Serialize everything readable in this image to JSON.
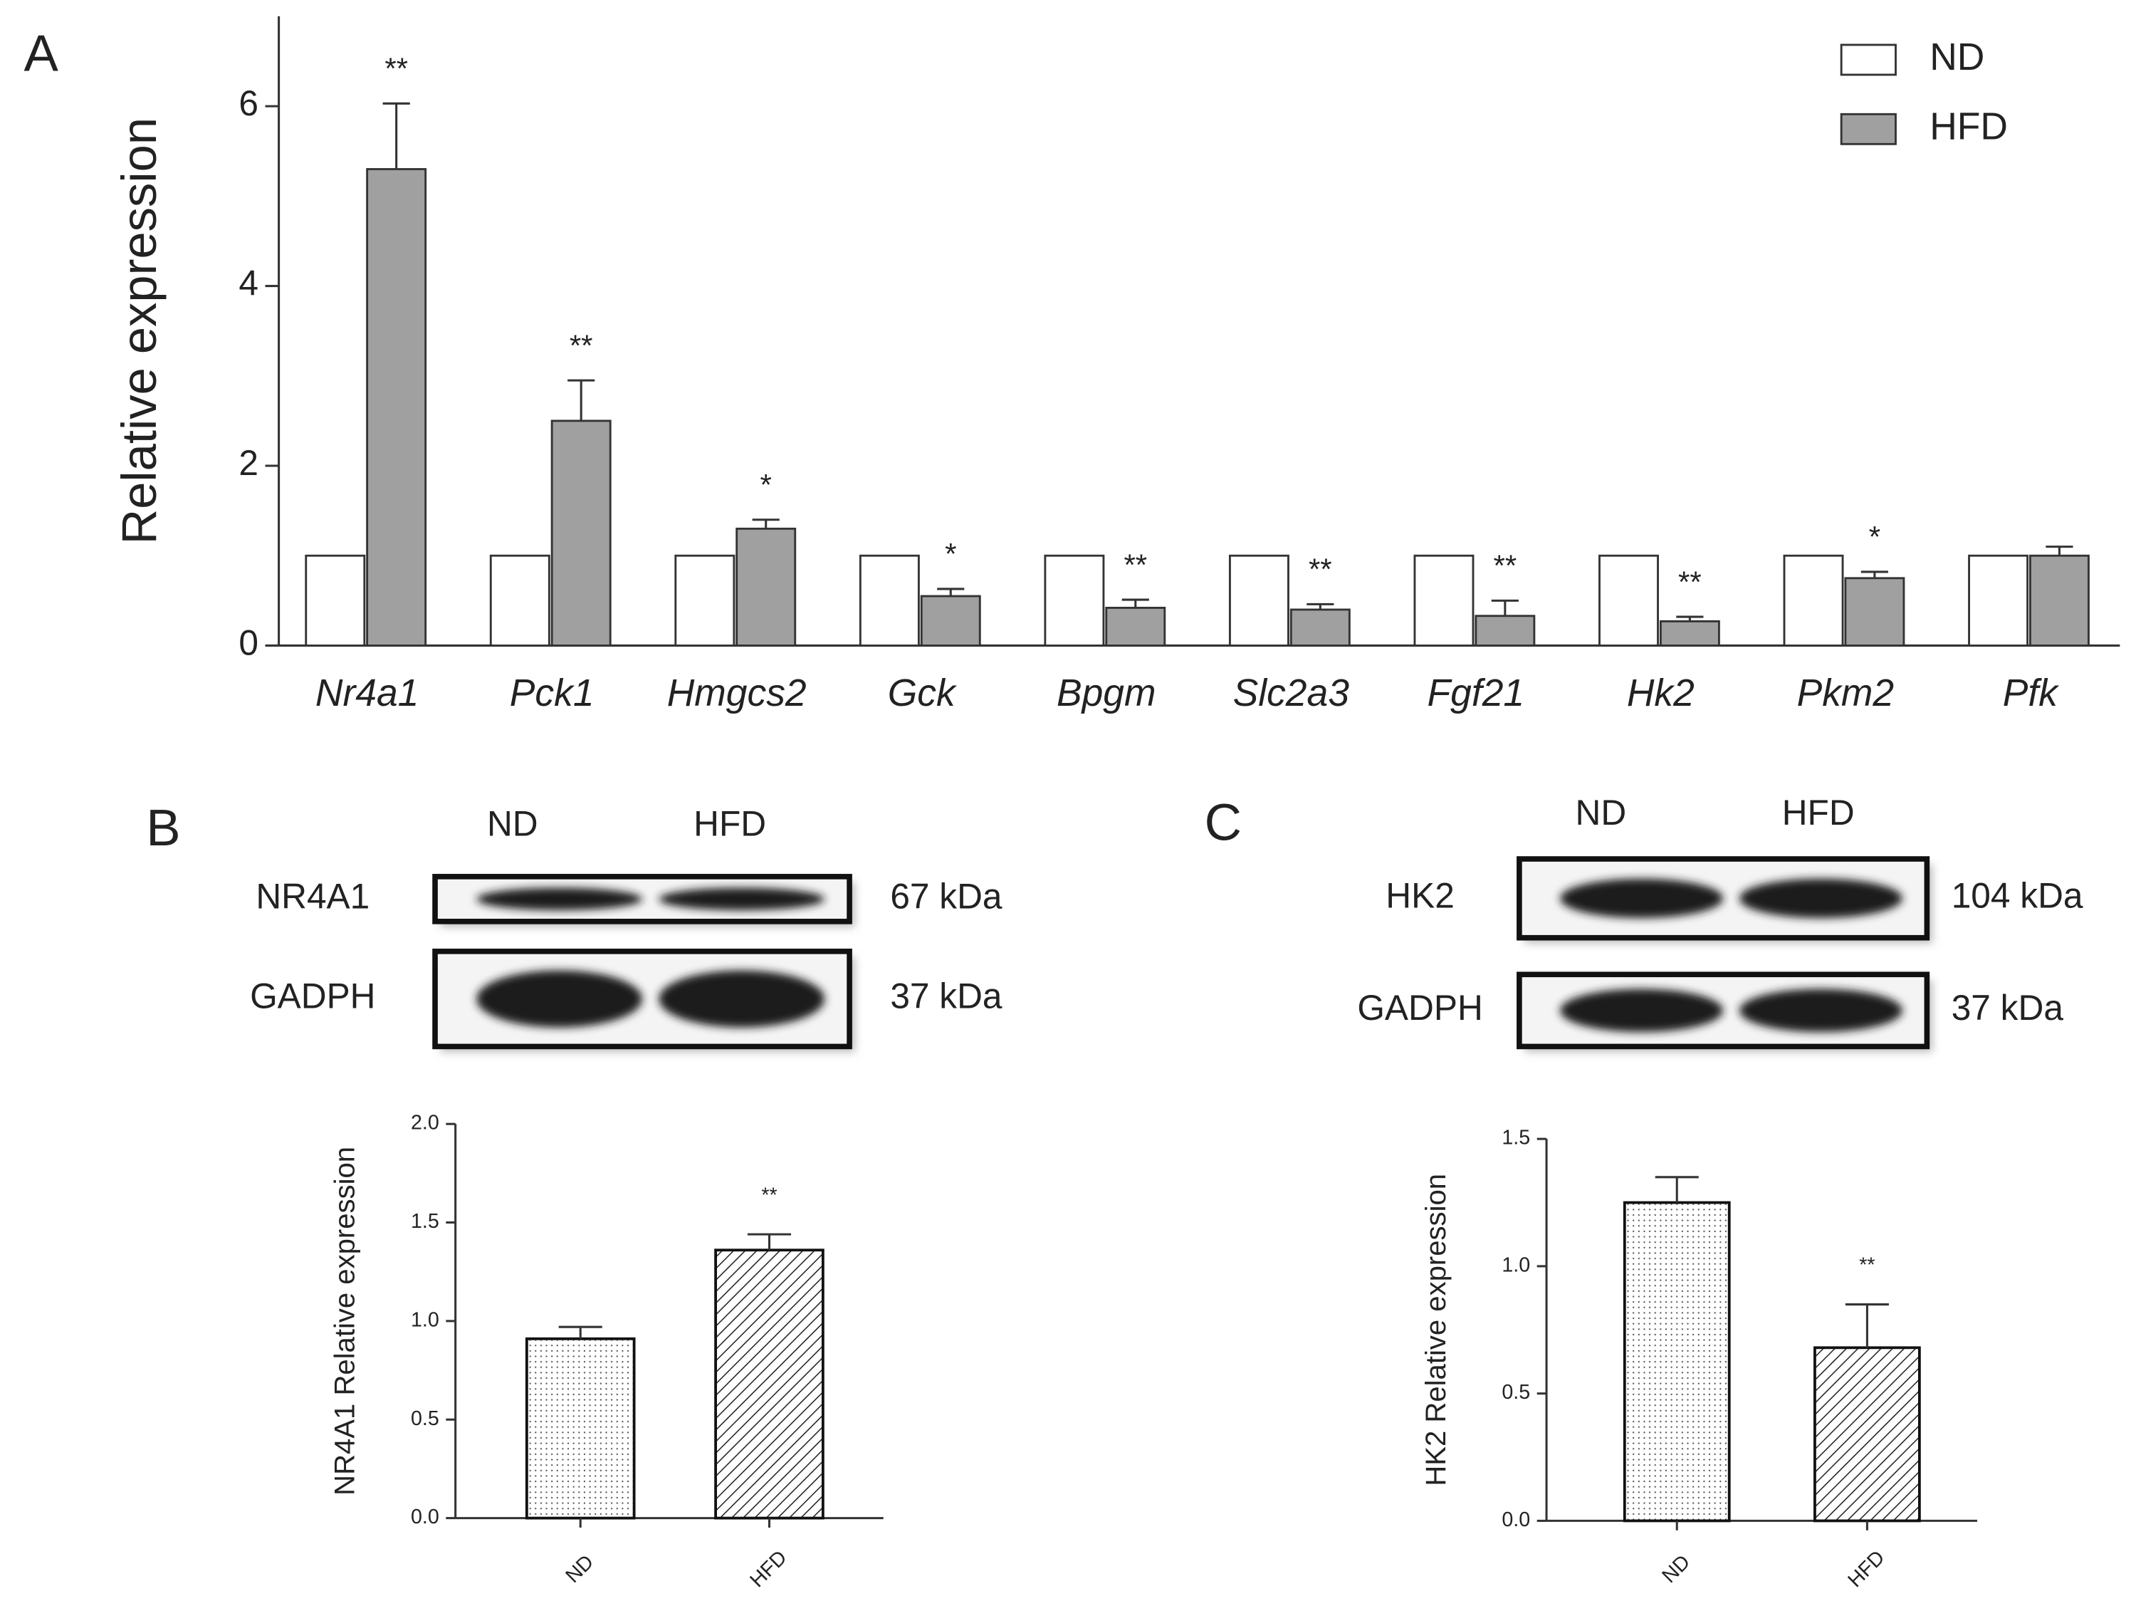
{
  "chart_data": [
    {
      "type": "bar",
      "panel": "A",
      "ylabel": "Relative expression",
      "categories": [
        "Nr4a1",
        "Pck1",
        "Hmgcs2",
        "Gck",
        "Bpgm",
        "Slc2a3",
        "Fgf21",
        "Hk2",
        "Pkm2",
        "Pfk"
      ],
      "series": [
        {
          "name": "ND",
          "color": "#ffffff",
          "values": [
            1,
            1,
            1,
            1,
            1,
            1,
            1,
            1,
            1,
            1
          ]
        },
        {
          "name": "HFD",
          "color": "#a0a0a0",
          "values": [
            5.3,
            2.5,
            1.3,
            0.55,
            0.42,
            0.4,
            0.33,
            0.27,
            0.75,
            1.0
          ],
          "errors": [
            0.73,
            0.45,
            0.1,
            0.08,
            0.09,
            0.06,
            0.17,
            0.05,
            0.07,
            0.1
          ]
        }
      ],
      "annotations": [
        "**",
        "**",
        "*",
        "*",
        "**",
        "**",
        "**",
        "**",
        "*",
        null
      ],
      "ylim": [
        0,
        7
      ],
      "yticks": [
        0,
        2,
        4,
        6
      ],
      "legend": "upper right"
    },
    {
      "type": "bar",
      "panel": "B",
      "ylabel": "NR4A1 Relative expression",
      "blot": {
        "lanes": [
          "ND",
          "HFD"
        ],
        "rows": [
          {
            "protein": "NR4A1",
            "size": "67 kDa"
          },
          {
            "protein": "GADPH",
            "size": "37 kDa"
          }
        ]
      },
      "categories": [
        "ND",
        "HFD"
      ],
      "values": [
        0.91,
        1.36
      ],
      "errors": [
        0.06,
        0.08
      ],
      "patterns": [
        "dots",
        "hatch"
      ],
      "annotations": [
        null,
        "**"
      ],
      "ylim": [
        0,
        2
      ],
      "yticks": [
        {
          "value": 0,
          "label": "0.0"
        },
        {
          "value": 0.5,
          "label": "0.5"
        },
        {
          "value": 1,
          "label": "1.0"
        },
        {
          "value": 1.5,
          "label": "1.5"
        },
        {
          "value": 2,
          "label": "2.0"
        }
      ]
    },
    {
      "type": "bar",
      "panel": "C",
      "ylabel": "HK2 Relative expression",
      "blot": {
        "lanes": [
          "ND",
          "HFD"
        ],
        "rows": [
          {
            "protein": "HK2",
            "size": "104 kDa"
          },
          {
            "protein": "GADPH",
            "size": "37 kDa"
          }
        ]
      },
      "categories": [
        "ND",
        "HFD"
      ],
      "values": [
        1.25,
        0.68
      ],
      "errors": [
        0.1,
        0.17
      ],
      "patterns": [
        "dots",
        "hatch"
      ],
      "annotations": [
        null,
        "**"
      ],
      "ylim": [
        0,
        1.5
      ],
      "yticks": [
        {
          "value": 0,
          "label": "0.0"
        },
        {
          "value": 0.5,
          "label": "0.5"
        },
        {
          "value": 1,
          "label": "1.0"
        },
        {
          "value": 1.5,
          "label": "1.5"
        }
      ]
    }
  ]
}
